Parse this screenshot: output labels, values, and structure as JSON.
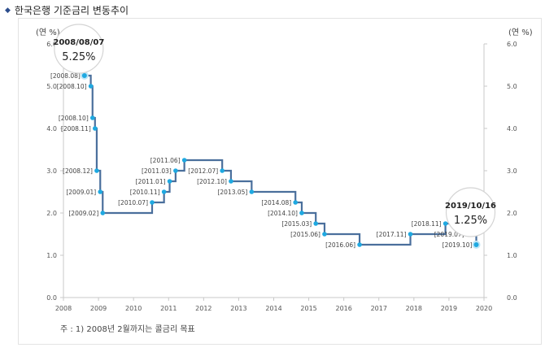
{
  "header": {
    "title": "한국은행 기준금리 변동추이"
  },
  "footnote": "주 : 1) 2008년 2월까지는 콜금리 목표",
  "chart_data": {
    "type": "line",
    "step": true,
    "title": "한국은행 기준금리 변동추이",
    "ylabel_left": "(연 %)",
    "ylabel_right": "(연 %)",
    "ylim": [
      0,
      6
    ],
    "yticks": [
      "0.0",
      "1.0",
      "2.0",
      "3.0",
      "4.0",
      "5.0",
      "6.0"
    ],
    "xlim": [
      2008,
      2020
    ],
    "xticks": [
      "2008",
      "2009",
      "2010",
      "2011",
      "2012",
      "2013",
      "2014",
      "2015",
      "2016",
      "2017",
      "2018",
      "2019",
      "2020"
    ],
    "points": [
      {
        "label": "[2008.08]",
        "x": 2008.6,
        "y": 5.25
      },
      {
        "label": "[2008.10]",
        "x": 2008.78,
        "y": 5.0
      },
      {
        "label": "[2008.10]",
        "x": 2008.83,
        "y": 4.25
      },
      {
        "label": "[2008.11]",
        "x": 2008.9,
        "y": 4.0
      },
      {
        "label": "[2008.12]",
        "x": 2008.95,
        "y": 3.0
      },
      {
        "label": "[2009.01]",
        "x": 2009.05,
        "y": 2.5
      },
      {
        "label": "[2009.02]",
        "x": 2009.12,
        "y": 2.0
      },
      {
        "label": "[2010.07]",
        "x": 2010.53,
        "y": 2.25
      },
      {
        "label": "[2010.11]",
        "x": 2010.87,
        "y": 2.5
      },
      {
        "label": "[2011.01]",
        "x": 2011.03,
        "y": 2.75
      },
      {
        "label": "[2011.03]",
        "x": 2011.2,
        "y": 3.0
      },
      {
        "label": "[2011.06]",
        "x": 2011.45,
        "y": 3.25
      },
      {
        "label": "[2012.07]",
        "x": 2012.53,
        "y": 3.0
      },
      {
        "label": "[2012.10]",
        "x": 2012.78,
        "y": 2.75
      },
      {
        "label": "[2013.05]",
        "x": 2013.37,
        "y": 2.5
      },
      {
        "label": "[2014.08]",
        "x": 2014.62,
        "y": 2.25
      },
      {
        "label": "[2014.10]",
        "x": 2014.8,
        "y": 2.0
      },
      {
        "label": "[2015.03]",
        "x": 2015.2,
        "y": 1.75
      },
      {
        "label": "[2015.06]",
        "x": 2015.45,
        "y": 1.5
      },
      {
        "label": "[2016.06]",
        "x": 2016.45,
        "y": 1.25
      },
      {
        "label": "[2017.11]",
        "x": 2017.9,
        "y": 1.5
      },
      {
        "label": "[2018.11]",
        "x": 2018.9,
        "y": 1.75
      },
      {
        "label": "[2019.07]",
        "x": 2019.55,
        "y": 1.5
      },
      {
        "label": "[2019.10]",
        "x": 2019.78,
        "y": 1.25
      }
    ],
    "callouts": [
      {
        "date": "2008/08/07",
        "value": "5.25%",
        "x": 2008.6,
        "y": 5.25
      },
      {
        "date": "2019/10/16",
        "value": "1.25%",
        "x": 2019.78,
        "y": 1.25
      }
    ],
    "line_color": "#4a6f9c",
    "marker_color": "#1fa9e1"
  }
}
